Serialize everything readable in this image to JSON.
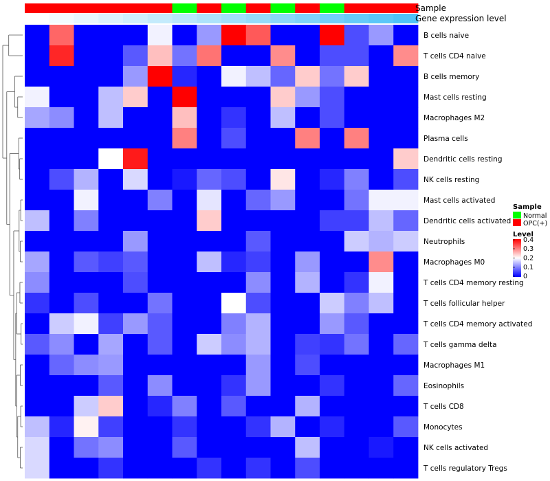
{
  "chart_data": {
    "type": "heatmap",
    "title": "",
    "annotations": [
      {
        "name": "Sample",
        "values": [
          "OPC(+)",
          "OPC(+)",
          "OPC(+)",
          "OPC(+)",
          "OPC(+)",
          "OPC(+)",
          "Normal",
          "OPC(+)",
          "Normal",
          "OPC(+)",
          "Normal",
          "OPC(+)",
          "Normal",
          "OPC(+)",
          "OPC(+)",
          "OPC(+)"
        ]
      },
      {
        "name": "Gene expression level",
        "values": [
          0.0,
          0.05,
          0.1,
          0.15,
          0.2,
          0.25,
          0.3,
          0.35,
          0.4,
          0.45,
          0.5,
          0.55,
          0.6,
          0.65,
          0.7,
          0.75
        ]
      }
    ],
    "rows": [
      "B cells naive",
      "T cells CD4 naive",
      "B cells memory",
      "Mast cells resting",
      "Macrophages M2",
      "Plasma cells",
      "Dendritic cells resting",
      "NK cells resting",
      "Mast cells activated",
      "Dendritic cells activated",
      "Neutrophils",
      "Macrophages M0",
      "T cells CD4 memory resting",
      "T cells follicular helper",
      "T cells CD4 memory activated",
      "T cells gamma delta",
      "Macrophages M1",
      "Eosinophils",
      "T cells CD8",
      "Monocytes",
      "NK cells activated",
      "T cells regulatory  Tregs"
    ],
    "values": [
      [
        0.0,
        0.32,
        0.0,
        0.0,
        0.0,
        0.19,
        0.0,
        0.12,
        0.4,
        0.33,
        0.0,
        0.0,
        0.4,
        0.06,
        0.12,
        0.0
      ],
      [
        0.0,
        0.37,
        0.0,
        0.0,
        0.07,
        0.25,
        0.09,
        0.31,
        0.0,
        0.0,
        0.29,
        0.0,
        0.06,
        0.06,
        0.0,
        0.29
      ],
      [
        0.0,
        0.0,
        0.0,
        0.0,
        0.12,
        0.4,
        0.03,
        0.0,
        0.19,
        0.15,
        0.08,
        0.24,
        0.09,
        0.24,
        0.0,
        0.0
      ],
      [
        0.19,
        0.0,
        0.0,
        0.15,
        0.24,
        0.0,
        0.4,
        0.0,
        0.0,
        0.0,
        0.24,
        0.12,
        0.06,
        0.0,
        0.0,
        0.0
      ],
      [
        0.13,
        0.11,
        0.0,
        0.15,
        0.0,
        0.0,
        0.25,
        0.0,
        0.04,
        0.0,
        0.15,
        0.0,
        0.06,
        0.0,
        0.0,
        0.0
      ],
      [
        0.0,
        0.0,
        0.0,
        0.0,
        0.0,
        0.0,
        0.3,
        0.0,
        0.06,
        0.0,
        0.0,
        0.3,
        0.0,
        0.3,
        0.0,
        0.0
      ],
      [
        0.0,
        0.0,
        0.0,
        0.2,
        0.38,
        0.0,
        0.0,
        0.0,
        0.0,
        0.0,
        0.0,
        0.0,
        0.0,
        0.0,
        0.0,
        0.24
      ],
      [
        0.0,
        0.06,
        0.14,
        0.0,
        0.17,
        0.0,
        0.02,
        0.08,
        0.06,
        0.0,
        0.22,
        0.0,
        0.03,
        0.1,
        0.0,
        0.06
      ],
      [
        0.0,
        0.0,
        0.19,
        0.0,
        0.0,
        0.1,
        0.0,
        0.18,
        0.0,
        0.08,
        0.12,
        0.0,
        0.0,
        0.09,
        0.19,
        0.19
      ],
      [
        0.15,
        0.0,
        0.1,
        0.0,
        0.0,
        0.0,
        0.0,
        0.24,
        0.0,
        0.0,
        0.0,
        0.0,
        0.05,
        0.05,
        0.15,
        0.08
      ],
      [
        0.0,
        0.0,
        0.0,
        0.0,
        0.12,
        0.0,
        0.0,
        0.0,
        0.0,
        0.07,
        0.0,
        0.0,
        0.0,
        0.16,
        0.14,
        0.16
      ],
      [
        0.13,
        0.0,
        0.07,
        0.05,
        0.07,
        0.0,
        0.0,
        0.15,
        0.03,
        0.05,
        0.0,
        0.12,
        0.0,
        0.0,
        0.29,
        0.0
      ],
      [
        0.11,
        0.0,
        0.0,
        0.0,
        0.06,
        0.0,
        0.0,
        0.0,
        0.0,
        0.11,
        0.0,
        0.14,
        0.0,
        0.04,
        0.19,
        0.0
      ],
      [
        0.04,
        0.0,
        0.06,
        0.0,
        0.0,
        0.09,
        0.0,
        0.0,
        0.2,
        0.06,
        0.0,
        0.0,
        0.16,
        0.1,
        0.15,
        0.0
      ],
      [
        0.0,
        0.16,
        0.19,
        0.05,
        0.12,
        0.07,
        0.0,
        0.0,
        0.1,
        0.14,
        0.0,
        0.0,
        0.12,
        0.07,
        0.0,
        0.0
      ],
      [
        0.07,
        0.11,
        0.0,
        0.13,
        0.0,
        0.07,
        0.0,
        0.16,
        0.11,
        0.14,
        0.0,
        0.05,
        0.04,
        0.09,
        0.0,
        0.08
      ],
      [
        0.0,
        0.08,
        0.11,
        0.12,
        0.0,
        0.0,
        0.0,
        0.0,
        0.0,
        0.12,
        0.0,
        0.06,
        0.0,
        0.0,
        0.0,
        0.0
      ],
      [
        0.0,
        0.0,
        0.0,
        0.07,
        0.0,
        0.11,
        0.0,
        0.0,
        0.04,
        0.12,
        0.0,
        0.0,
        0.04,
        0.0,
        0.0,
        0.08
      ],
      [
        0.0,
        0.0,
        0.16,
        0.24,
        0.0,
        0.03,
        0.1,
        0.0,
        0.07,
        0.0,
        0.0,
        0.14,
        0.0,
        0.0,
        0.0,
        0.0
      ],
      [
        0.15,
        0.03,
        0.21,
        0.05,
        0.0,
        0.0,
        0.04,
        0.0,
        0.0,
        0.04,
        0.14,
        0.0,
        0.03,
        0.0,
        0.0,
        0.07
      ],
      [
        0.17,
        0.0,
        0.09,
        0.11,
        0.0,
        0.0,
        0.07,
        0.0,
        0.0,
        0.0,
        0.0,
        0.15,
        0.0,
        0.0,
        0.02,
        0.0
      ],
      [
        0.17,
        0.0,
        0.0,
        0.04,
        0.0,
        0.0,
        0.0,
        0.04,
        0.0,
        0.04,
        0.0,
        0.06,
        0.0,
        0.0,
        0.0,
        0.0
      ]
    ],
    "color_scale": {
      "min": 0.0,
      "mid": 0.2,
      "max": 0.4,
      "low_color": "#0000ff",
      "mid_color": "#ffffff",
      "high_color": "#ff0000"
    },
    "legend": {
      "position": "right",
      "sample": {
        "title": "Sample",
        "entries": [
          {
            "label": "Normal",
            "color": "#00ff00"
          },
          {
            "label": "OPC(+)",
            "color": "#ff0000"
          }
        ]
      },
      "level": {
        "title": "Level",
        "ticks": [
          "0.4",
          "0.3",
          "0.2",
          "0.1",
          "0"
        ]
      }
    },
    "gene_expression_scale": {
      "low_color": "#ffffff",
      "high_color": "#4fc3f7"
    },
    "dendrogram": "rows, left side"
  }
}
